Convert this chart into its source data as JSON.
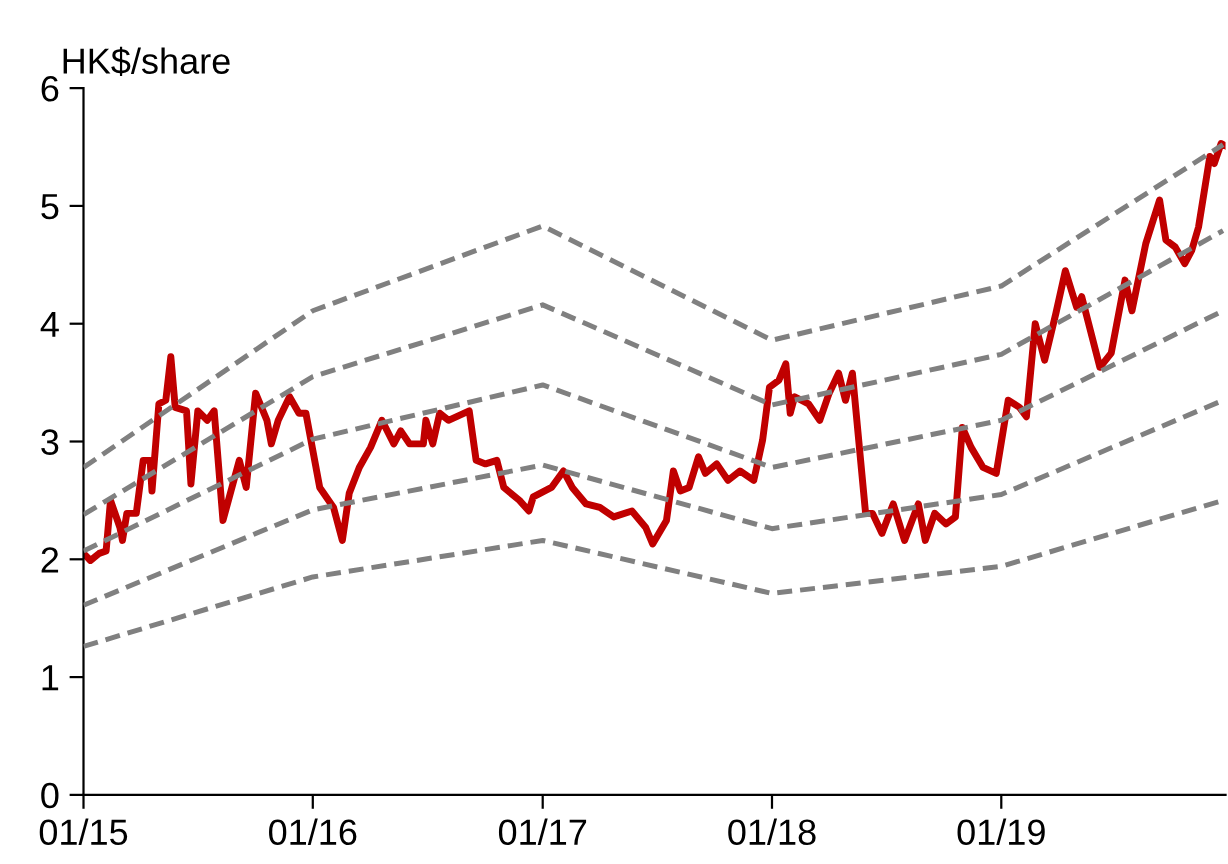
{
  "chart_data": {
    "type": "line",
    "ylabel": "HK$/share",
    "xlim": [
      "2015-01-01",
      "2019-12-24"
    ],
    "ylim": [
      0,
      6
    ],
    "yticks": [
      0,
      1,
      2,
      3,
      4,
      5,
      6
    ],
    "xticks": [
      {
        "value": "2015-01-01",
        "label": "01/15"
      },
      {
        "value": "2016-01-01",
        "label": "01/16"
      },
      {
        "value": "2017-01-01",
        "label": "01/17"
      },
      {
        "value": "2018-01-01",
        "label": "01/18"
      },
      {
        "value": "2019-01-01",
        "label": "01/19"
      }
    ],
    "grid": false,
    "legend": false,
    "marker": "none",
    "series": [
      {
        "color": "#808080",
        "line_style": "dashed",
        "x": [
          "2015-01-01",
          "2016-01-01",
          "2017-01-01",
          "2018-01-01",
          "2019-01-01",
          "2019-12-20"
        ],
        "values": [
          2.78,
          4.11,
          4.83,
          3.86,
          4.32,
          5.52
        ]
      },
      {
        "color": "#808080",
        "line_style": "dashed",
        "x": [
          "2015-01-01",
          "2016-01-01",
          "2017-01-01",
          "2018-01-01",
          "2019-01-01",
          "2019-12-20"
        ],
        "values": [
          2.38,
          3.55,
          4.16,
          3.31,
          3.74,
          4.79
        ]
      },
      {
        "color": "#808080",
        "line_style": "dashed",
        "x": [
          "2015-01-01",
          "2016-01-01",
          "2017-01-01",
          "2018-01-01",
          "2019-01-01",
          "2019-12-20"
        ],
        "values": [
          2.07,
          3.02,
          3.48,
          2.78,
          3.18,
          4.11
        ]
      },
      {
        "color": "#808080",
        "line_style": "dashed",
        "x": [
          "2015-01-01",
          "2016-01-01",
          "2017-01-01",
          "2018-01-01",
          "2019-01-01",
          "2019-12-20"
        ],
        "values": [
          1.61,
          2.42,
          2.8,
          2.26,
          2.55,
          3.35
        ]
      },
      {
        "color": "#808080",
        "line_style": "dashed",
        "x": [
          "2015-01-01",
          "2016-01-01",
          "2017-01-01",
          "2018-01-01",
          "2019-01-01",
          "2019-12-20"
        ],
        "values": [
          1.26,
          1.85,
          2.16,
          1.71,
          1.94,
          2.5
        ]
      },
      {
        "color": "#c00000",
        "line_style": "solid",
        "x": [
          "2015-01-01",
          "2015-01-12",
          "2015-01-26",
          "2015-02-06",
          "2015-02-13",
          "2015-02-28",
          "2015-03-04",
          "2015-03-11",
          "2015-03-26",
          "2015-04-06",
          "2015-04-17",
          "2015-04-20",
          "2015-05-01",
          "2015-05-12",
          "2015-05-20",
          "2015-05-27",
          "2015-06-14",
          "2015-06-21",
          "2015-07-02",
          "2015-07-17",
          "2015-07-28",
          "2015-08-11",
          "2015-09-06",
          "2015-09-17",
          "2015-10-02",
          "2015-10-20",
          "2015-10-27",
          "2015-11-07",
          "2015-11-25",
          "2015-12-10",
          "2015-12-21",
          "2016-01-12",
          "2016-02-03",
          "2016-02-17",
          "2016-02-28",
          "2016-03-15",
          "2016-04-02",
          "2016-04-20",
          "2016-05-09",
          "2016-05-20",
          "2016-06-03",
          "2016-06-25",
          "2016-06-29",
          "2016-07-10",
          "2016-07-21",
          "2016-08-04",
          "2016-09-06",
          "2016-09-17",
          "2016-10-02",
          "2016-10-20",
          "2016-10-31",
          "2016-11-25",
          "2016-12-10",
          "2016-12-17",
          "2017-01-15",
          "2017-02-03",
          "2017-02-17",
          "2017-03-11",
          "2017-04-02",
          "2017-04-24",
          "2017-05-23",
          "2017-06-14",
          "2017-06-25",
          "2017-07-17",
          "2017-07-28",
          "2017-08-08",
          "2017-08-22",
          "2017-09-06",
          "2017-09-17",
          "2017-10-05",
          "2017-10-23",
          "2017-11-11",
          "2017-12-03",
          "2017-12-17",
          "2017-12-28",
          "2018-01-12",
          "2018-01-23",
          "2018-01-30",
          "2018-02-06",
          "2018-02-28",
          "2018-03-18",
          "2018-04-02",
          "2018-04-17",
          "2018-04-28",
          "2018-05-09",
          "2018-05-30",
          "2018-06-10",
          "2018-06-25",
          "2018-07-13",
          "2018-07-31",
          "2018-08-22",
          "2018-09-02",
          "2018-09-17",
          "2018-10-05",
          "2018-10-20",
          "2018-10-31",
          "2018-11-14",
          "2018-12-03",
          "2018-12-24",
          "2019-01-12",
          "2019-01-30",
          "2019-02-10",
          "2019-02-24",
          "2019-03-11",
          "2019-03-29",
          "2019-04-13",
          "2019-05-01",
          "2019-05-09",
          "2019-06-07",
          "2019-06-25",
          "2019-07-17",
          "2019-07-28",
          "2019-08-19",
          "2019-09-10",
          "2019-09-20",
          "2019-10-05",
          "2019-10-20",
          "2019-10-31",
          "2019-11-11",
          "2019-11-29",
          "2019-12-06",
          "2019-12-17",
          "2019-12-24"
        ],
        "values": [
          2.05,
          1.99,
          2.05,
          2.07,
          2.5,
          2.27,
          2.16,
          2.39,
          2.39,
          2.84,
          2.84,
          2.58,
          3.32,
          3.35,
          3.72,
          3.29,
          3.26,
          2.64,
          3.26,
          3.18,
          3.26,
          2.33,
          2.84,
          2.61,
          3.41,
          3.18,
          2.98,
          3.18,
          3.38,
          3.24,
          3.24,
          2.61,
          2.44,
          2.16,
          2.56,
          2.78,
          2.95,
          3.18,
          2.98,
          3.09,
          2.98,
          2.98,
          3.18,
          2.98,
          3.24,
          3.18,
          3.26,
          2.84,
          2.81,
          2.84,
          2.61,
          2.5,
          2.41,
          2.53,
          2.61,
          2.75,
          2.61,
          2.47,
          2.44,
          2.36,
          2.41,
          2.27,
          2.13,
          2.33,
          2.75,
          2.58,
          2.61,
          2.87,
          2.73,
          2.81,
          2.67,
          2.75,
          2.67,
          3.01,
          3.46,
          3.52,
          3.66,
          3.24,
          3.38,
          3.32,
          3.18,
          3.41,
          3.58,
          3.35,
          3.58,
          2.39,
          2.39,
          2.22,
          2.47,
          2.16,
          2.47,
          2.16,
          2.39,
          2.3,
          2.36,
          3.12,
          2.95,
          2.78,
          2.73,
          3.35,
          3.29,
          3.21,
          4.0,
          3.69,
          4.09,
          4.45,
          4.14,
          4.23,
          3.63,
          3.75,
          4.37,
          4.11,
          4.68,
          5.05,
          4.71,
          4.65,
          4.51,
          4.62,
          4.82,
          5.42,
          5.36,
          5.53,
          5.51
        ]
      }
    ]
  }
}
